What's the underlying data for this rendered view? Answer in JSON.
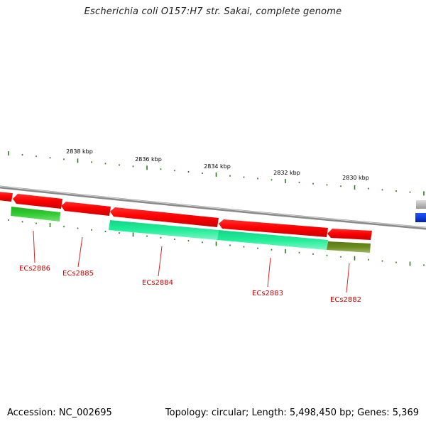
{
  "title": "Escherichia coli O157:H7 str. Sakai, complete genome",
  "accession_text": "Accession: NC_002695",
  "summary_text": "Topology: circular; Length: 5,498,450 bp; Genes: 5,369",
  "ruler": {
    "labels": [
      "2838 kbp",
      "2836 kbp",
      "2834 kbp",
      "2832 kbp",
      "2830 kbp"
    ],
    "tick_color": "#2a7a1a"
  },
  "genes": [
    {
      "name": "ECs2886",
      "label": "ECs2886"
    },
    {
      "name": "ECs2885",
      "label": "ECs2885"
    },
    {
      "name": "ECs2884",
      "label": "ECs2884"
    },
    {
      "name": "ECs2883",
      "label": "ECs2883"
    },
    {
      "name": "ECs2882",
      "label": "ECs2882"
    }
  ],
  "colors": {
    "forward_cds": "#ff0000",
    "reverse_green": "#33cc33",
    "reverse_teal": "#22ee99",
    "olive": "#6b8a1e",
    "backbone": "#888888",
    "blue_feature": "#0033dd",
    "label_red": "#cc0000"
  }
}
